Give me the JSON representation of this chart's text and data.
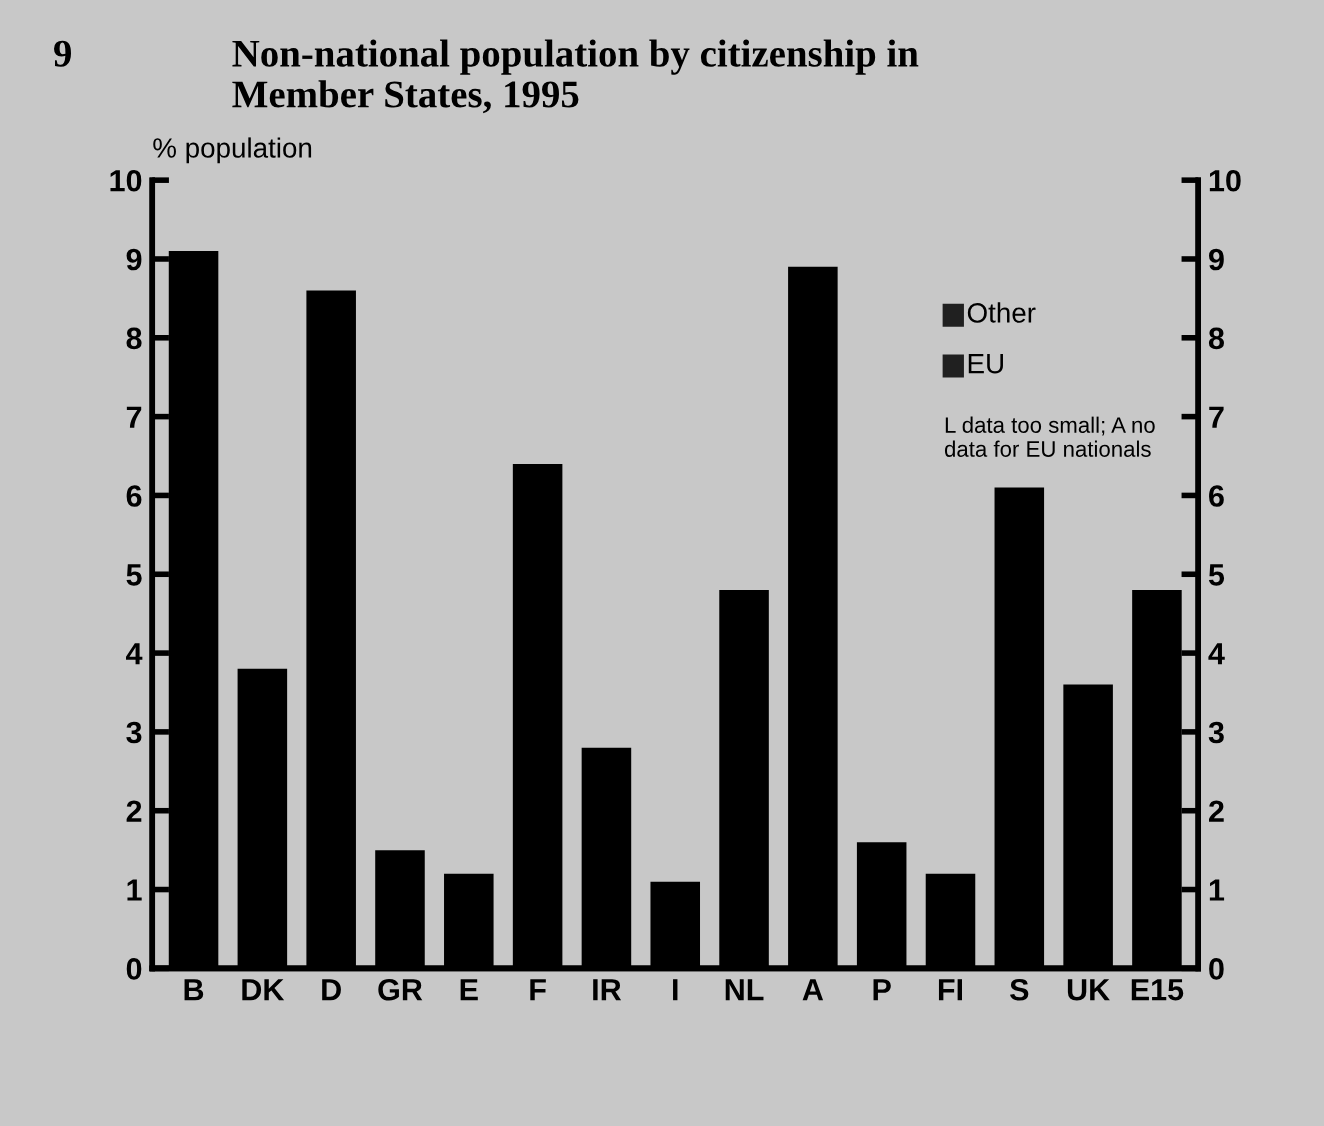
{
  "chart_data": {
    "type": "bar",
    "title": "Non-national population by citizenship in\nMember States, 1995",
    "ylabel": "% population",
    "categories": [
      "B",
      "DK",
      "D",
      "GR",
      "E",
      "F",
      "IR",
      "I",
      "NL",
      "A",
      "P",
      "FI",
      "S",
      "UK",
      "E15"
    ],
    "values": [
      9.1,
      3.8,
      8.6,
      1.5,
      1.2,
      6.4,
      2.8,
      1.1,
      4.8,
      8.9,
      1.6,
      1.2,
      6.1,
      3.6,
      4.8
    ],
    "color": "#000000",
    "ylim": [
      0,
      10
    ],
    "yticks": [
      0,
      1,
      2,
      3,
      4,
      5,
      6,
      7,
      8,
      9,
      10
    ],
    "y2lim": [
      0,
      10
    ],
    "y2ticks": [
      0,
      1,
      2,
      3,
      4,
      5,
      6,
      7,
      8,
      9,
      10
    ],
    "annotations": [
      "9",
      "Other",
      "EU",
      "L data too small; A no data for EU nationals"
    ],
    "grid": false
  }
}
